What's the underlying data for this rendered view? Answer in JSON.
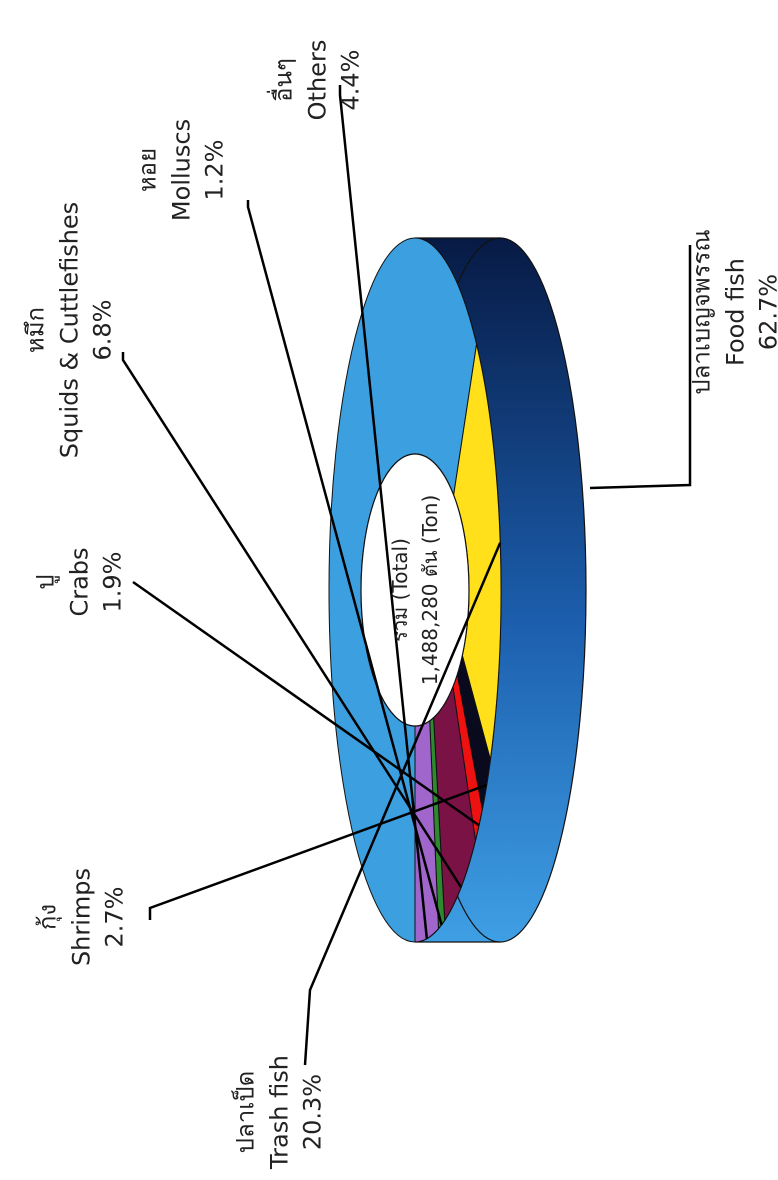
{
  "chart_data": {
    "type": "pie",
    "subtype": "3d-donut",
    "orientation": "rotated-90-clockwise",
    "center_label": [
      "รวม (Total)",
      "1,488,280 ตัน (Ton)"
    ],
    "slices": [
      {
        "label_th": "ปลาเบญจพรรณ",
        "label_en": "Food fish",
        "value": 62.7,
        "value_label": "62.7%",
        "color": "#3c9fe0"
      },
      {
        "label_th": "ปลาเป็ด",
        "label_en": "Trash fish",
        "value": 20.3,
        "value_label": "20.3%",
        "color": "#ffe01a"
      },
      {
        "label_th": "กุ้ง",
        "label_en": "Shrimps",
        "value": 2.7,
        "value_label": "2.7%",
        "color": "#0a0a1e"
      },
      {
        "label_th": "ปู",
        "label_en": "Crabs",
        "value": 1.9,
        "value_label": "1.9%",
        "color": "#ee1111"
      },
      {
        "label_th": "หมึก",
        "label_en": "Squids & Cuttlefishes",
        "value": 6.8,
        "value_label": "6.8%",
        "color": "#7a1245"
      },
      {
        "label_th": "หอย",
        "label_en": "Molluscs",
        "value": 1.2,
        "value_label": "1.2%",
        "color": "#2e8a2e"
      },
      {
        "label_th": "อื่นๆ",
        "label_en": "Others",
        "value": 4.4,
        "value_label": "4.4%",
        "color": "#a066cc"
      }
    ]
  }
}
